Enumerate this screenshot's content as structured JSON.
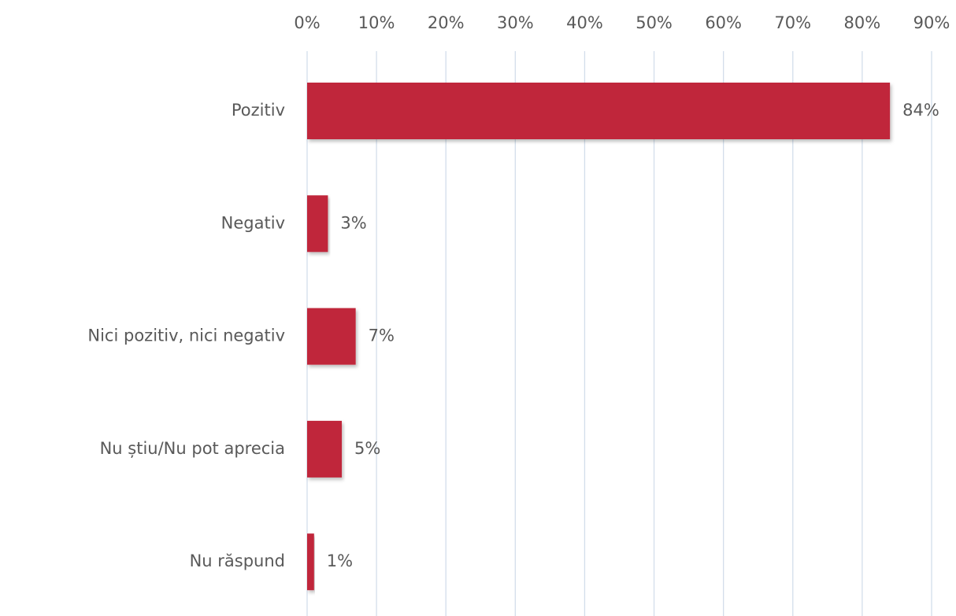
{
  "chart_data": {
    "type": "bar",
    "orientation": "horizontal",
    "categories": [
      "Pozitiv",
      "Negativ",
      "Nici pozitiv, nici negativ",
      "Nu știu/Nu pot aprecia",
      "Nu răspund"
    ],
    "values": [
      84,
      3,
      7,
      5,
      1
    ],
    "value_labels": [
      "84%",
      "3%",
      "7%",
      "5%",
      "1%"
    ],
    "color": "#c0283a",
    "xlim": [
      0,
      90
    ],
    "xticks": [
      {
        "value": 0,
        "label": "0%"
      },
      {
        "value": 10,
        "label": "10%"
      },
      {
        "value": 20,
        "label": "20%"
      },
      {
        "value": 30,
        "label": "30%"
      },
      {
        "value": 40,
        "label": "40%"
      },
      {
        "value": 50,
        "label": "50%"
      },
      {
        "value": 60,
        "label": "60%"
      },
      {
        "value": 70,
        "label": "70%"
      },
      {
        "value": 80,
        "label": "80%"
      },
      {
        "value": 90,
        "label": "90%"
      }
    ],
    "grid": true
  }
}
